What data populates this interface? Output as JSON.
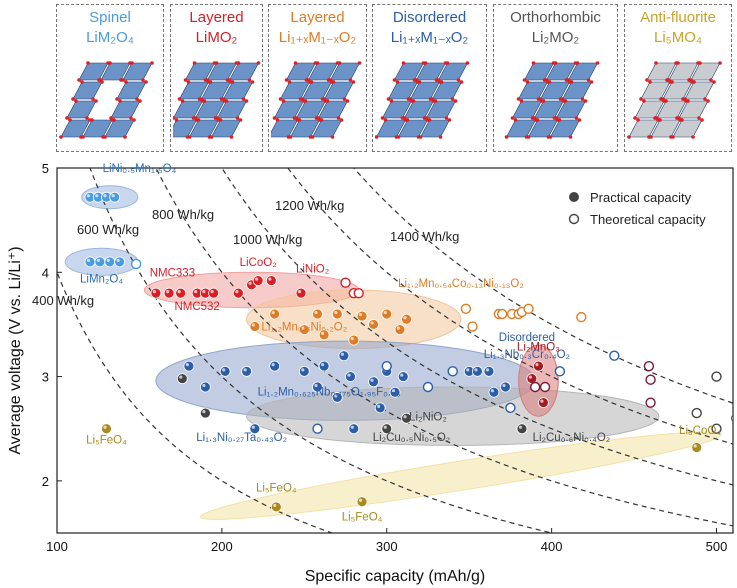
{
  "structures": [
    {
      "title": "Spinel",
      "formula": "LiM₂O₄",
      "color": "#4a9be0"
    },
    {
      "title": "Layered",
      "formula": "LiMO₂",
      "color": "#d91f26"
    },
    {
      "title": "Layered",
      "formula": "Li₁₊ₓM₁₋ₓO₂",
      "color": "#e07c25"
    },
    {
      "title": "Disordered",
      "formula": "Li₁₊ₓM₁₋ₓO₂",
      "color": "#2c5ea8"
    },
    {
      "title": "Orthorhombic",
      "formula": "Li₂MO₂",
      "color": "#555555"
    },
    {
      "title": "Anti-fluorite",
      "formula": "Li₅MO₄",
      "color": "#c9a227"
    }
  ],
  "legend": {
    "practical": "Practical capacity",
    "theoretical": "Theoretical capacity"
  },
  "chart_data": {
    "type": "scatter",
    "xlabel": "Specific capacity (mAh/g)",
    "ylabel": "Average voltage (V vs. Li/Li⁺)",
    "xlim": [
      100,
      510
    ],
    "ylim": [
      1.5,
      5
    ],
    "xticks": [
      100,
      200,
      300,
      400,
      500
    ],
    "yticks": [
      2,
      3,
      4,
      5
    ],
    "energy_contours": [
      {
        "wh_kg": 400,
        "label": "400 Wh/kg"
      },
      {
        "wh_kg": 600,
        "label": "600 Wh/kg"
      },
      {
        "wh_kg": 800,
        "label": "800 Wh/kg"
      },
      {
        "wh_kg": 1000,
        "label": "1000 Wh/kg"
      },
      {
        "wh_kg": 1200,
        "label": "1200 Wh/kg"
      },
      {
        "wh_kg": 1400,
        "label": "1400 Wh/kg"
      }
    ],
    "regions": [
      {
        "name": "spinel-high",
        "cx": 132,
        "cy": 4.72,
        "rx": 17,
        "ry": 0.11,
        "color": "#9ab6e0"
      },
      {
        "name": "spinel-low",
        "cx": 127,
        "cy": 4.1,
        "rx": 22,
        "ry": 0.13,
        "color": "#9ab6e0"
      },
      {
        "name": "layered",
        "cx": 218,
        "cy": 3.83,
        "rx": 65,
        "ry": 0.17,
        "color": "#f2a0a0"
      },
      {
        "name": "li-rich-layered",
        "cx": 280,
        "cy": 3.55,
        "rx": 65,
        "ry": 0.28,
        "color": "#f3c49a"
      },
      {
        "name": "disordered",
        "cx": 275,
        "cy": 2.96,
        "rx": 115,
        "ry": 0.38,
        "color": "#8fa4cc"
      },
      {
        "name": "orthorhombic",
        "cx": 340,
        "cy": 2.62,
        "rx": 125,
        "ry": 0.28,
        "color": "#b5b5b5"
      },
      {
        "name": "anti-fluorite",
        "cx": 345,
        "cy": 2.05,
        "rx": 160,
        "ry": 0.14,
        "rotate": -9,
        "color": "#f3e2a4"
      },
      {
        "name": "li2mno3",
        "cx": 392,
        "cy": 2.96,
        "rx": 12,
        "ry": 0.34,
        "color": "#d87a7a"
      }
    ],
    "series": [
      {
        "name": "Spinel practical",
        "color": "#4a9be0",
        "filled": true,
        "x": [
          120,
          125,
          130,
          135,
          120,
          126,
          132,
          138
        ],
        "y": [
          4.72,
          4.72,
          4.72,
          4.72,
          4.1,
          4.1,
          4.1,
          4.1
        ]
      },
      {
        "name": "Spinel theoretical",
        "color": "#4a9be0",
        "filled": false,
        "x": [
          148
        ],
        "y": [
          4.08
        ]
      },
      {
        "name": "Layered practical",
        "color": "#d91f26",
        "filled": true,
        "x": [
          160,
          168,
          175,
          185,
          190,
          195,
          210,
          218,
          222,
          230,
          248
        ],
        "y": [
          3.8,
          3.8,
          3.8,
          3.8,
          3.8,
          3.8,
          3.8,
          3.88,
          3.92,
          3.92,
          3.8
        ]
      },
      {
        "name": "Layered theoretical",
        "color": "#d91f26",
        "filled": false,
        "x": [
          275,
          280,
          283
        ],
        "y": [
          3.9,
          3.8,
          3.8
        ]
      },
      {
        "name": "Li-rich practical",
        "color": "#e07c25",
        "filled": true,
        "x": [
          220,
          232,
          250,
          258,
          262,
          270,
          280,
          285,
          292,
          300,
          308,
          312
        ],
        "y": [
          3.48,
          3.6,
          3.45,
          3.6,
          3.4,
          3.6,
          3.35,
          3.58,
          3.5,
          3.6,
          3.45,
          3.55
        ]
      },
      {
        "name": "Li-rich theoretical",
        "color": "#e07c25",
        "filled": false,
        "x": [
          348,
          352,
          368,
          370,
          376,
          380,
          382,
          386,
          418
        ],
        "y": [
          3.65,
          3.48,
          3.6,
          3.6,
          3.6,
          3.6,
          3.62,
          3.65,
          3.57
        ]
      },
      {
        "name": "Disordered practical",
        "color": "#2c5ea8",
        "filled": true,
        "x": [
          180,
          190,
          202,
          215,
          220,
          232,
          250,
          258,
          262,
          270,
          274,
          278,
          280,
          292,
          296,
          300,
          305,
          310,
          350,
          355,
          362,
          365,
          372
        ],
        "y": [
          3.1,
          2.9,
          3.05,
          3.05,
          2.5,
          3.1,
          3.05,
          2.9,
          3.1,
          2.8,
          3.2,
          3.0,
          2.5,
          2.95,
          2.7,
          3.05,
          2.85,
          3.0,
          3.05,
          3.05,
          3.05,
          2.85,
          2.9
        ]
      },
      {
        "name": "Disordered theoretical",
        "color": "#2c5ea8",
        "filled": false,
        "x": [
          258,
          300,
          325,
          340,
          375,
          405,
          438
        ],
        "y": [
          2.5,
          3.1,
          2.9,
          3.05,
          2.7,
          3.05,
          3.2
        ]
      },
      {
        "name": "Li2MnO3 practical",
        "color": "#a81b22",
        "filled": true,
        "x": [
          388,
          392,
          395
        ],
        "y": [
          2.98,
          3.1,
          2.75
        ]
      },
      {
        "name": "Li2MnO3 theoretical",
        "color": "#7a1a3a",
        "filled": false,
        "x": [
          390,
          396,
          459,
          460,
          460
        ],
        "y": [
          2.9,
          2.9,
          3.1,
          2.97,
          2.75
        ]
      },
      {
        "name": "Orthorhombic practical",
        "color": "#444444",
        "filled": true,
        "x": [
          176,
          190,
          300,
          312,
          382
        ],
        "y": [
          2.98,
          2.65,
          2.5,
          2.6,
          2.5
        ]
      },
      {
        "name": "Orthorhombic theoretical",
        "color": "#444444",
        "filled": false,
        "x": [
          488,
          500,
          500,
          512
        ],
        "y": [
          2.65,
          2.5,
          3.0,
          2.6
        ]
      },
      {
        "name": "Anti-fluorite practical",
        "color": "#a88a1f",
        "filled": true,
        "x": [
          130,
          233,
          285,
          488
        ],
        "y": [
          2.5,
          1.75,
          1.8,
          2.32
        ]
      }
    ],
    "annotations": [
      {
        "text": "LiNi₀.₅Mn₁.₅O₄",
        "x": 150,
        "y": 4.96,
        "color": "#2c6fb8"
      },
      {
        "text": "LiMn₂O₄",
        "x": 127,
        "y": 3.9,
        "color": "#2c6fb8"
      },
      {
        "text": "NMC333",
        "x": 170,
        "y": 3.96,
        "color": "#d91f26"
      },
      {
        "text": "NMC532",
        "x": 185,
        "y": 3.64,
        "color": "#d91f26"
      },
      {
        "text": "LiCoO₂",
        "x": 222,
        "y": 4.06,
        "color": "#d91f26"
      },
      {
        "text": "LiNiO₂",
        "x": 255,
        "y": 4.0,
        "color": "#d91f26"
      },
      {
        "text": "Li₁.₂Mn₀.₅₄Co₀.₁₃Ni₀.₁₃O₂",
        "x": 345,
        "y": 3.86,
        "color": "#e07c25"
      },
      {
        "text": "Li₁.₂Mn₀.₆Ni₀.₂O₂",
        "x": 250,
        "y": 3.44,
        "color": "#e07c25"
      },
      {
        "text": "Disordered",
        "x": 385,
        "y": 3.34,
        "color": "#2c5ea8"
      },
      {
        "text": "Li₁.₃Nb₀.₃Cr₀.₄O₂",
        "x": 385,
        "y": 3.18,
        "color": "#2c5ea8"
      },
      {
        "text": "Li₁.₂Mn₀.₆₂₅Nb₀.₁₇₅O₁.₉₅F₀.₀₅",
        "x": 265,
        "y": 2.82,
        "color": "#2c5ea8"
      },
      {
        "text": "Li₂MnO₃",
        "x": 392,
        "y": 3.25,
        "color": "#a81b22"
      },
      {
        "text": "Li₁.₃Ni₀.₂₇Ta₀.₄₃O₂",
        "x": 212,
        "y": 2.38,
        "color": "#2c5ea8"
      },
      {
        "text": "Li₂NiO₂",
        "x": 325,
        "y": 2.58,
        "color": "#444444"
      },
      {
        "text": "Li₂Cu₀.₅Ni₀.₅O₂",
        "x": 315,
        "y": 2.38,
        "color": "#444444"
      },
      {
        "text": "Li₂Cu₀.₆Ni₀.₄O₂",
        "x": 412,
        "y": 2.38,
        "color": "#444444"
      },
      {
        "text": "Li₆CoO₄",
        "x": 490,
        "y": 2.45,
        "color": "#a88a1f"
      },
      {
        "text": "Li₅FeO₄",
        "x": 130,
        "y": 2.36,
        "color": "#a88a1f"
      },
      {
        "text": "Li₅FeO₄",
        "x": 233,
        "y": 1.9,
        "color": "#a88a1f"
      },
      {
        "text": "Li₅FeO₄",
        "x": 285,
        "y": 1.62,
        "color": "#a88a1f"
      }
    ]
  }
}
